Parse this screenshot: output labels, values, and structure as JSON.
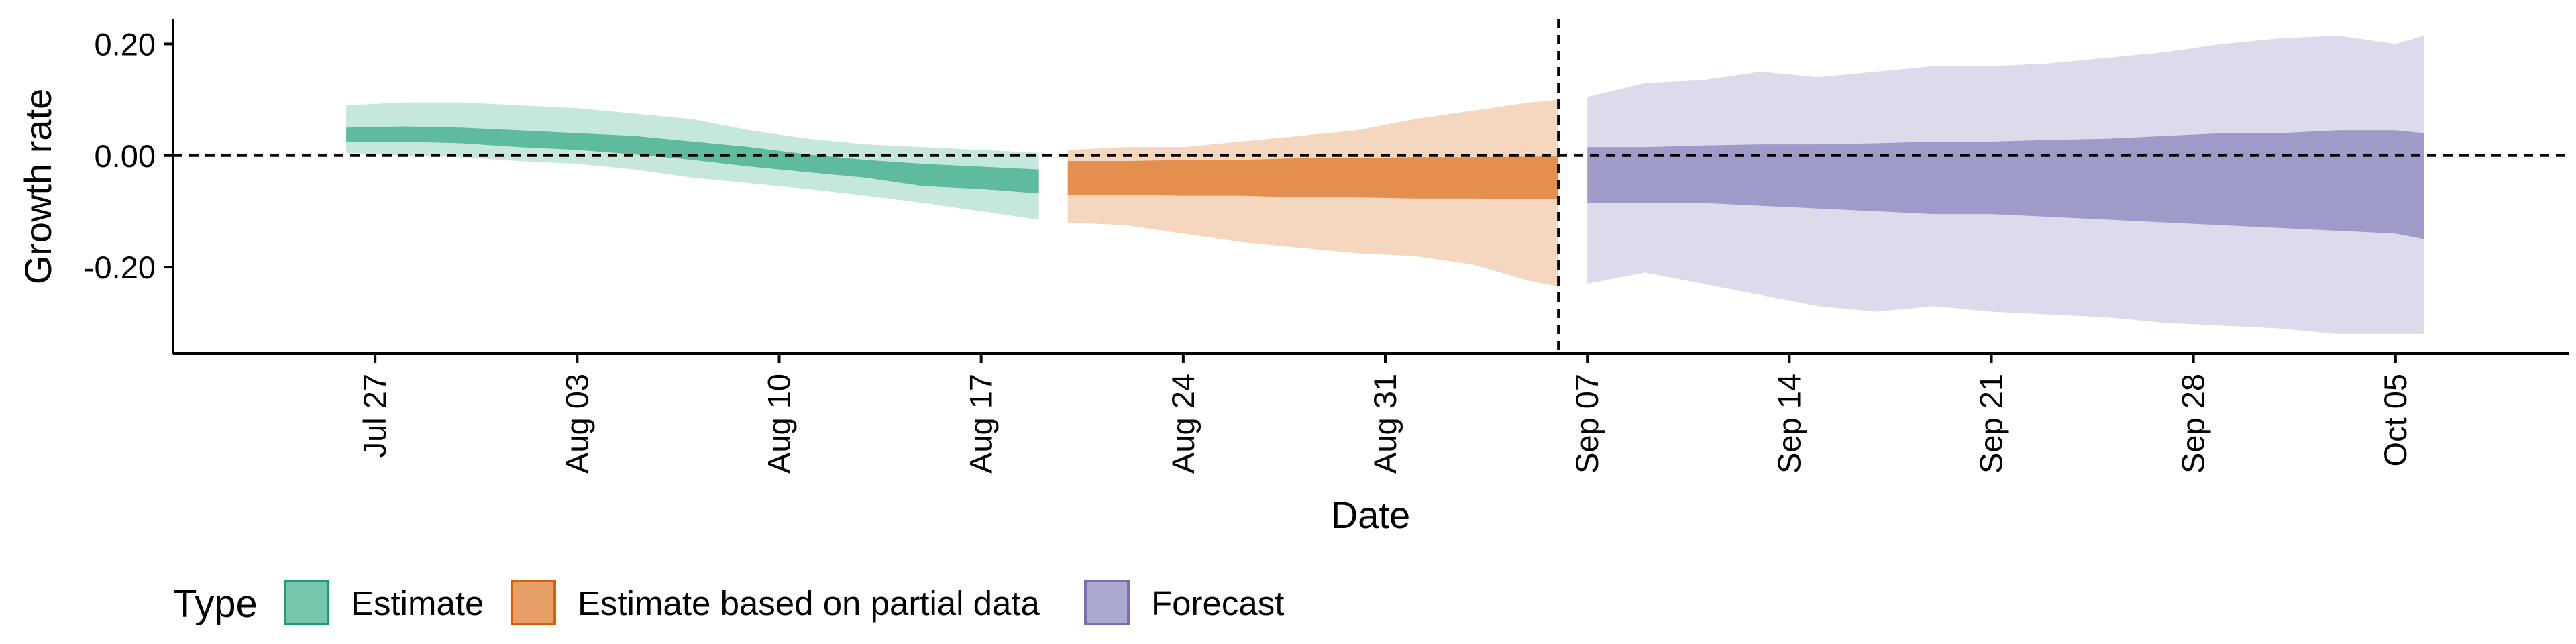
{
  "chart_data": {
    "type": "area",
    "xlabel": "Date",
    "ylabel": "Growth rate",
    "ylim": [
      -0.355,
      0.245
    ],
    "xlim": [
      "2021-07-20",
      "2021-10-11"
    ],
    "x_ticks": [
      "2021-07-27",
      "2021-08-03",
      "2021-08-10",
      "2021-08-17",
      "2021-08-24",
      "2021-08-31",
      "2021-09-07",
      "2021-09-14",
      "2021-09-21",
      "2021-09-28",
      "2021-10-05"
    ],
    "x_tick_labels": [
      "Jul 27",
      "Aug 03",
      "Aug 10",
      "Aug 17",
      "Aug 24",
      "Aug 31",
      "Sep 07",
      "Sep 14",
      "Sep 21",
      "Sep 28",
      "Oct 05"
    ],
    "y_ticks": [
      0.2,
      0.0,
      -0.2
    ],
    "y_tick_labels": [
      "0.20",
      "0.00",
      "-0.20"
    ],
    "hline_y": 0,
    "vline_date": "2021-09-06",
    "grid": false,
    "legend": {
      "title": "Type",
      "position": "bottom-left",
      "entries": [
        "Estimate",
        "Estimate based on partial data",
        "Forecast"
      ]
    },
    "colors": {
      "Estimate": "#1b9e77",
      "Estimate based on partial data": "#d95f02",
      "Forecast": "#7570b3"
    },
    "series": [
      {
        "name": "Estimate",
        "dates": [
          "2021-07-26",
          "2021-07-28",
          "2021-07-30",
          "2021-08-01",
          "2021-08-03",
          "2021-08-05",
          "2021-08-07",
          "2021-08-09",
          "2021-08-11",
          "2021-08-13",
          "2021-08-15",
          "2021-08-17",
          "2021-08-19"
        ],
        "outer_upper": [
          0.09,
          0.095,
          0.095,
          0.09,
          0.085,
          0.075,
          0.065,
          0.045,
          0.03,
          0.02,
          0.015,
          0.01,
          0.005
        ],
        "outer_lower": [
          0.005,
          0.0,
          -0.003,
          -0.01,
          -0.015,
          -0.025,
          -0.04,
          -0.05,
          -0.06,
          -0.072,
          -0.085,
          -0.1,
          -0.115
        ],
        "inner_upper": [
          0.05,
          0.052,
          0.05,
          0.045,
          0.04,
          0.035,
          0.025,
          0.015,
          0.002,
          -0.008,
          -0.015,
          -0.02,
          -0.025
        ],
        "inner_lower": [
          0.025,
          0.025,
          0.022,
          0.015,
          0.01,
          0.002,
          -0.008,
          -0.02,
          -0.03,
          -0.04,
          -0.055,
          -0.06,
          -0.068
        ]
      },
      {
        "name": "Estimate based on partial data",
        "dates": [
          "2021-08-20",
          "2021-08-22",
          "2021-08-24",
          "2021-08-26",
          "2021-08-28",
          "2021-08-30",
          "2021-09-01",
          "2021-09-03",
          "2021-09-05",
          "2021-09-06"
        ],
        "outer_upper": [
          0.01,
          0.015,
          0.015,
          0.025,
          0.035,
          0.045,
          0.065,
          0.08,
          0.095,
          0.1
        ],
        "outer_lower": [
          -0.12,
          -0.125,
          -0.14,
          -0.155,
          -0.165,
          -0.175,
          -0.18,
          -0.195,
          -0.225,
          -0.235
        ],
        "inner_upper": [
          -0.01,
          -0.01,
          -0.008,
          -0.008,
          -0.005,
          -0.005,
          -0.003,
          -0.003,
          -0.002,
          -0.002
        ],
        "inner_lower": [
          -0.07,
          -0.07,
          -0.072,
          -0.072,
          -0.075,
          -0.075,
          -0.077,
          -0.077,
          -0.078,
          -0.078
        ]
      },
      {
        "name": "Forecast",
        "dates": [
          "2021-09-07",
          "2021-09-09",
          "2021-09-11",
          "2021-09-13",
          "2021-09-15",
          "2021-09-17",
          "2021-09-19",
          "2021-09-21",
          "2021-09-23",
          "2021-09-25",
          "2021-09-27",
          "2021-09-29",
          "2021-10-01",
          "2021-10-03",
          "2021-10-05",
          "2021-10-06"
        ],
        "outer_upper": [
          0.105,
          0.13,
          0.135,
          0.15,
          0.14,
          0.15,
          0.16,
          0.16,
          0.165,
          0.175,
          0.185,
          0.2,
          0.21,
          0.215,
          0.2,
          0.215
        ],
        "outer_lower": [
          -0.23,
          -0.21,
          -0.23,
          -0.25,
          -0.27,
          -0.28,
          -0.27,
          -0.28,
          -0.285,
          -0.29,
          -0.3,
          -0.305,
          -0.31,
          -0.32,
          -0.32,
          -0.32
        ],
        "inner_upper": [
          0.015,
          0.015,
          0.018,
          0.02,
          0.02,
          0.022,
          0.025,
          0.025,
          0.028,
          0.03,
          0.035,
          0.04,
          0.04,
          0.045,
          0.045,
          0.04
        ],
        "inner_lower": [
          -0.085,
          -0.085,
          -0.085,
          -0.09,
          -0.095,
          -0.1,
          -0.105,
          -0.105,
          -0.11,
          -0.115,
          -0.12,
          -0.125,
          -0.13,
          -0.135,
          -0.14,
          -0.15
        ]
      }
    ]
  }
}
